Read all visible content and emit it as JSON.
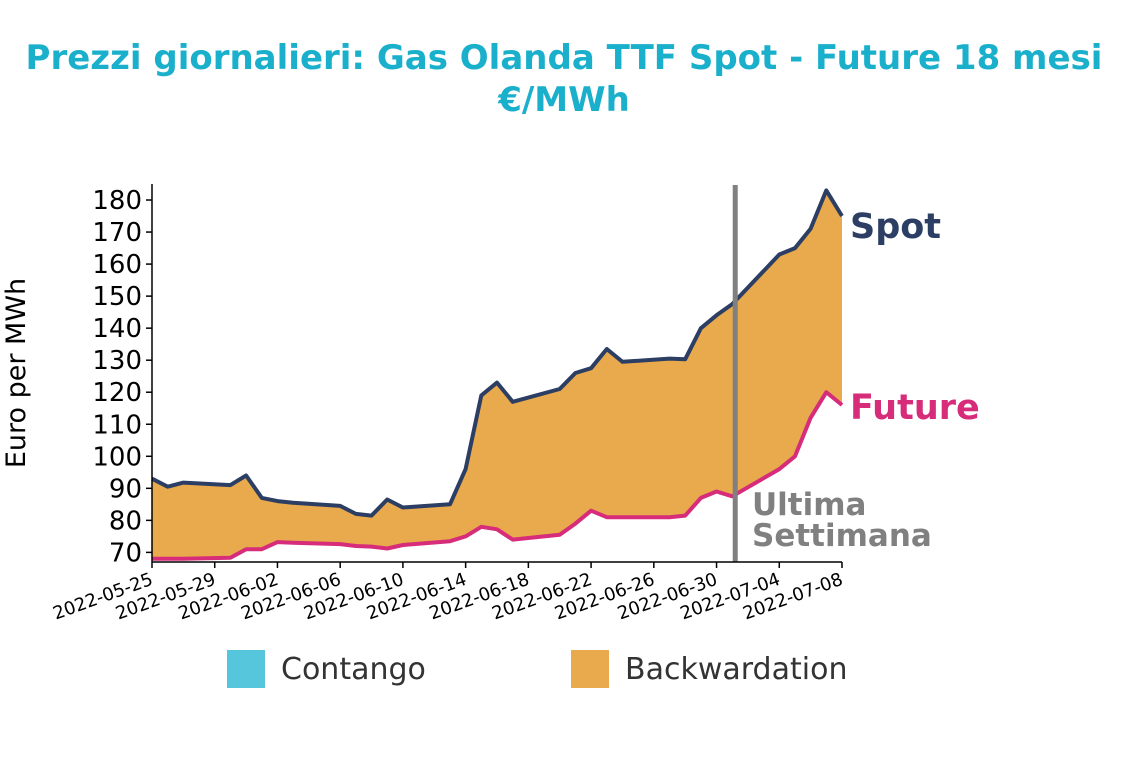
{
  "title_line1": "Prezzi giornalieri: Gas Olanda TTF Spot - Future 18 mesi",
  "title_line2": "€/MWh",
  "colors": {
    "title": "#1ab0cc",
    "spot": "#2c3e63",
    "future": "#d62c7a",
    "contango": "#56c6dc",
    "backwardation": "#e8aa4c",
    "marker": "#808080"
  },
  "legend": [
    {
      "label": "Contango",
      "color": "#56c6dc"
    },
    {
      "label": "Backwardation",
      "color": "#e8aa4c"
    }
  ],
  "chart_data": {
    "type": "area",
    "ylabel": "Euro per MWh",
    "ylim": [
      67,
      185
    ],
    "yticks": [
      70,
      80,
      90,
      100,
      110,
      120,
      130,
      140,
      150,
      160,
      170,
      180
    ],
    "xlim": [
      "2022-05-25",
      "2022-07-08"
    ],
    "xticks": [
      "2022-05-25",
      "2022-05-29",
      "2022-06-02",
      "2022-06-06",
      "2022-06-10",
      "2022-06-14",
      "2022-06-18",
      "2022-06-22",
      "2022-06-26",
      "2022-06-30",
      "2022-07-04",
      "2022-07-08"
    ],
    "series": [
      {
        "name": "Spot",
        "x": [
          "2022-05-25",
          "2022-05-26",
          "2022-05-27",
          "2022-05-30",
          "2022-05-31",
          "2022-06-01",
          "2022-06-02",
          "2022-06-03",
          "2022-06-06",
          "2022-06-07",
          "2022-06-08",
          "2022-06-09",
          "2022-06-10",
          "2022-06-13",
          "2022-06-14",
          "2022-06-15",
          "2022-06-16",
          "2022-06-17",
          "2022-06-20",
          "2022-06-21",
          "2022-06-22",
          "2022-06-23",
          "2022-06-24",
          "2022-06-27",
          "2022-06-28",
          "2022-06-29",
          "2022-06-30",
          "2022-07-01",
          "2022-07-04",
          "2022-07-05",
          "2022-07-06",
          "2022-07-07",
          "2022-07-08"
        ],
        "values": [
          93,
          90.5,
          91.8,
          91,
          94,
          87,
          86,
          85.5,
          84.5,
          82,
          81.5,
          86.5,
          84,
          85,
          96,
          119,
          123,
          117,
          121,
          126,
          127.5,
          133.5,
          129.5,
          130.5,
          130.3,
          140,
          144,
          147.5,
          163,
          165,
          171,
          183,
          175
        ]
      },
      {
        "name": "Future",
        "x": [
          "2022-05-25",
          "2022-05-26",
          "2022-05-27",
          "2022-05-30",
          "2022-05-31",
          "2022-06-01",
          "2022-06-02",
          "2022-06-03",
          "2022-06-06",
          "2022-06-07",
          "2022-06-08",
          "2022-06-09",
          "2022-06-10",
          "2022-06-13",
          "2022-06-14",
          "2022-06-15",
          "2022-06-16",
          "2022-06-17",
          "2022-06-20",
          "2022-06-21",
          "2022-06-22",
          "2022-06-23",
          "2022-06-24",
          "2022-06-27",
          "2022-06-28",
          "2022-06-29",
          "2022-06-30",
          "2022-07-01",
          "2022-07-04",
          "2022-07-05",
          "2022-07-06",
          "2022-07-07",
          "2022-07-08"
        ],
        "values": [
          68,
          68,
          68,
          68.3,
          71,
          71,
          73.2,
          73,
          72.6,
          72,
          71.8,
          71.2,
          72.3,
          73.5,
          75,
          78,
          77.2,
          74,
          75.5,
          79,
          83,
          81,
          81,
          81,
          81.5,
          87,
          89,
          87.5,
          96,
          100,
          112,
          120,
          116
        ]
      }
    ],
    "fill_label": "Backwardation",
    "annotations": [
      {
        "text": "Spot"
      },
      {
        "text": "Future"
      },
      {
        "text": "Ultima",
        "text2": "Settimana",
        "x": "2022-07-01"
      }
    ]
  }
}
